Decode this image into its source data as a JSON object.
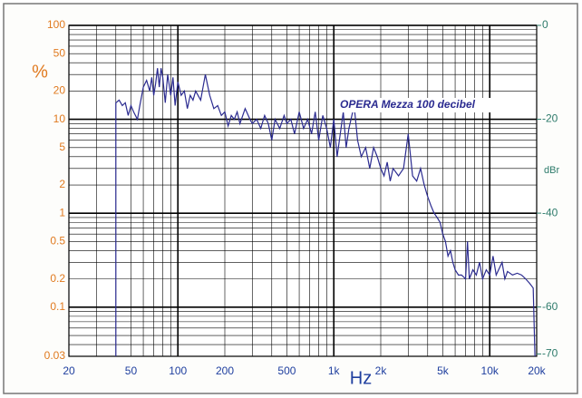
{
  "chart_data": {
    "type": "line",
    "x_label": "Hz",
    "y_label": "%",
    "y2_label": "dBr",
    "xscale": "log",
    "yscale": "log",
    "grid": true,
    "xlim": [
      20,
      20000
    ],
    "ylim": [
      0.03,
      100
    ],
    "y2lim": [
      -70.5,
      0
    ],
    "xticks": [
      20,
      50,
      100,
      200,
      500,
      {
        "value": 1000,
        "label": "1k"
      },
      {
        "value": 2000,
        "label": "2k"
      },
      {
        "value": 5000,
        "label": "5k"
      },
      {
        "value": 10000,
        "label": "10k"
      },
      {
        "value": 20000,
        "label": "20k"
      }
    ],
    "yticks": [
      100,
      50,
      20,
      10,
      5,
      2,
      1,
      0.5,
      0.2,
      0.1,
      0.03
    ],
    "y2ticks": [
      0,
      -20,
      -40,
      -60,
      -70
    ],
    "x": [
      40,
      40,
      42,
      44,
      46,
      48,
      50,
      52,
      55,
      57,
      60,
      63,
      66,
      68,
      70,
      72,
      74,
      76,
      78,
      80,
      83,
      86,
      90,
      93,
      96,
      100,
      105,
      110,
      115,
      120,
      125,
      130,
      140,
      150,
      160,
      170,
      180,
      190,
      200,
      210,
      220,
      230,
      240,
      250,
      270,
      290,
      300,
      320,
      340,
      360,
      380,
      400,
      420,
      450,
      480,
      500,
      530,
      560,
      600,
      640,
      680,
      720,
      760,
      800,
      850,
      900,
      950,
      1000,
      1050,
      1100,
      1150,
      1200,
      1250,
      1350,
      1420,
      1500,
      1600,
      1700,
      1800,
      1900,
      2000,
      2100,
      2200,
      2300,
      2400,
      2600,
      2800,
      3000,
      3200,
      3400,
      3600,
      3800,
      4000,
      4200,
      4400,
      4600,
      4800,
      5000,
      5200,
      5400,
      5600,
      5800,
      6000,
      6300,
      6600,
      7000,
      7200,
      7400,
      7800,
      8200,
      8600,
      9000,
      9500,
      10000,
      10500,
      11000,
      12000,
      12500,
      13000,
      14000,
      15000,
      16000,
      17000,
      18000,
      19000,
      19500
    ],
    "series": [
      {
        "name": "OPERA Mezza 100 decibel",
        "color": "#2b2b90",
        "values": [
          0.03,
          15,
          16,
          14,
          15,
          11,
          14,
          12,
          10,
          14,
          22,
          26,
          20,
          28,
          18,
          24,
          35,
          22,
          35,
          28,
          15,
          30,
          18,
          28,
          14,
          25,
          18,
          20,
          13,
          18,
          16,
          20,
          16,
          30,
          18,
          13,
          14,
          11,
          12,
          8.5,
          11,
          10,
          12,
          9,
          13,
          10,
          9,
          10,
          8,
          11,
          9,
          6,
          10,
          8,
          11,
          9,
          10,
          7,
          12,
          8,
          10,
          7,
          12,
          6,
          11,
          8,
          5,
          10,
          4,
          7,
          12,
          5,
          8,
          14,
          6,
          4,
          5,
          3,
          5,
          4,
          3,
          2.5,
          3.5,
          2.2,
          3,
          2.5,
          3,
          7,
          2.5,
          2.2,
          3,
          2,
          1.5,
          1.2,
          1.0,
          0.9,
          0.8,
          0.6,
          0.5,
          0.35,
          0.4,
          0.3,
          0.25,
          0.22,
          0.22,
          0.2,
          0.5,
          0.2,
          0.25,
          0.22,
          0.3,
          0.2,
          0.25,
          0.22,
          0.35,
          0.22,
          0.3,
          0.2,
          0.24,
          0.22,
          0.23,
          0.22,
          0.2,
          0.18,
          0.16,
          0.03
        ]
      }
    ]
  }
}
